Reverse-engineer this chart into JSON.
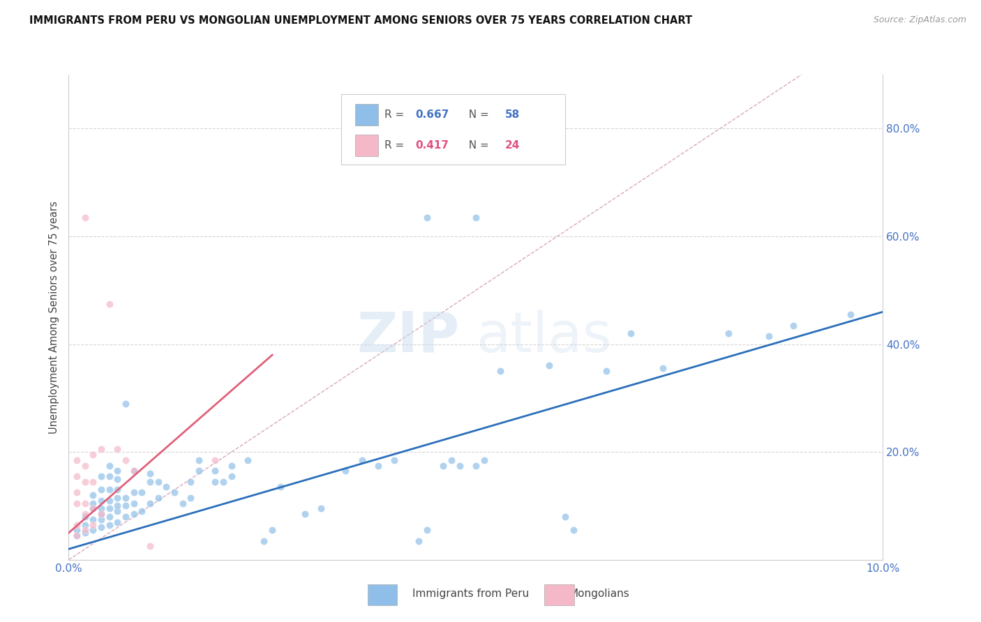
{
  "title": "IMMIGRANTS FROM PERU VS MONGOLIAN UNEMPLOYMENT AMONG SENIORS OVER 75 YEARS CORRELATION CHART",
  "source": "Source: ZipAtlas.com",
  "ylabel": "Unemployment Among Seniors over 75 years",
  "xlim": [
    0.0,
    0.1
  ],
  "ylim": [
    0.0,
    0.9
  ],
  "xticks": [
    0.0,
    0.02,
    0.04,
    0.06,
    0.08,
    0.1
  ],
  "yticks": [
    0.0,
    0.2,
    0.4,
    0.6,
    0.8
  ],
  "xticklabels": [
    "0.0%",
    "",
    "",
    "",
    "",
    "10.0%"
  ],
  "yticklabels": [
    "",
    "20.0%",
    "40.0%",
    "60.0%",
    "80.0%"
  ],
  "legend_label1": "Immigrants from Peru",
  "legend_label2": "Mongolians",
  "blue_color": "#8fbfe8",
  "pink_color": "#f4b8c8",
  "blue_line_color": "#2a6fba",
  "pink_line_color": "#e0607a",
  "diagonal_color": "#d8a8b8",
  "background_color": "#ffffff",
  "watermark_zip": "ZIP",
  "watermark_atlas": "atlas",
  "peru_points": [
    [
      0.001,
      0.045
    ],
    [
      0.001,
      0.055
    ],
    [
      0.002,
      0.05
    ],
    [
      0.002,
      0.065
    ],
    [
      0.002,
      0.08
    ],
    [
      0.003,
      0.055
    ],
    [
      0.003,
      0.075
    ],
    [
      0.003,
      0.095
    ],
    [
      0.003,
      0.105
    ],
    [
      0.003,
      0.12
    ],
    [
      0.004,
      0.06
    ],
    [
      0.004,
      0.075
    ],
    [
      0.004,
      0.085
    ],
    [
      0.004,
      0.095
    ],
    [
      0.004,
      0.11
    ],
    [
      0.004,
      0.13
    ],
    [
      0.004,
      0.155
    ],
    [
      0.005,
      0.065
    ],
    [
      0.005,
      0.08
    ],
    [
      0.005,
      0.095
    ],
    [
      0.005,
      0.11
    ],
    [
      0.005,
      0.13
    ],
    [
      0.005,
      0.155
    ],
    [
      0.005,
      0.175
    ],
    [
      0.006,
      0.07
    ],
    [
      0.006,
      0.09
    ],
    [
      0.006,
      0.1
    ],
    [
      0.006,
      0.115
    ],
    [
      0.006,
      0.13
    ],
    [
      0.006,
      0.15
    ],
    [
      0.006,
      0.165
    ],
    [
      0.007,
      0.08
    ],
    [
      0.007,
      0.1
    ],
    [
      0.007,
      0.115
    ],
    [
      0.007,
      0.29
    ],
    [
      0.008,
      0.085
    ],
    [
      0.008,
      0.105
    ],
    [
      0.008,
      0.125
    ],
    [
      0.008,
      0.165
    ],
    [
      0.009,
      0.09
    ],
    [
      0.009,
      0.125
    ],
    [
      0.01,
      0.105
    ],
    [
      0.01,
      0.145
    ],
    [
      0.01,
      0.16
    ],
    [
      0.011,
      0.115
    ],
    [
      0.011,
      0.145
    ],
    [
      0.012,
      0.135
    ],
    [
      0.013,
      0.125
    ],
    [
      0.014,
      0.105
    ],
    [
      0.015,
      0.115
    ],
    [
      0.015,
      0.145
    ],
    [
      0.016,
      0.165
    ],
    [
      0.016,
      0.185
    ],
    [
      0.018,
      0.145
    ],
    [
      0.018,
      0.165
    ],
    [
      0.019,
      0.145
    ],
    [
      0.02,
      0.155
    ],
    [
      0.02,
      0.175
    ],
    [
      0.022,
      0.185
    ],
    [
      0.024,
      0.035
    ],
    [
      0.025,
      0.055
    ],
    [
      0.026,
      0.135
    ],
    [
      0.029,
      0.085
    ],
    [
      0.031,
      0.095
    ],
    [
      0.034,
      0.165
    ],
    [
      0.036,
      0.185
    ],
    [
      0.038,
      0.175
    ],
    [
      0.04,
      0.185
    ],
    [
      0.043,
      0.035
    ],
    [
      0.044,
      0.055
    ],
    [
      0.046,
      0.175
    ],
    [
      0.047,
      0.185
    ],
    [
      0.048,
      0.175
    ],
    [
      0.05,
      0.175
    ],
    [
      0.051,
      0.185
    ],
    [
      0.044,
      0.635
    ],
    [
      0.05,
      0.635
    ],
    [
      0.053,
      0.35
    ],
    [
      0.059,
      0.36
    ],
    [
      0.061,
      0.08
    ],
    [
      0.062,
      0.055
    ],
    [
      0.066,
      0.35
    ],
    [
      0.069,
      0.42
    ],
    [
      0.073,
      0.355
    ],
    [
      0.081,
      0.42
    ],
    [
      0.086,
      0.415
    ],
    [
      0.089,
      0.435
    ],
    [
      0.096,
      0.455
    ]
  ],
  "mongolian_points": [
    [
      0.001,
      0.045
    ],
    [
      0.001,
      0.065
    ],
    [
      0.001,
      0.105
    ],
    [
      0.001,
      0.125
    ],
    [
      0.001,
      0.155
    ],
    [
      0.001,
      0.185
    ],
    [
      0.002,
      0.055
    ],
    [
      0.002,
      0.085
    ],
    [
      0.002,
      0.105
    ],
    [
      0.002,
      0.145
    ],
    [
      0.002,
      0.175
    ],
    [
      0.002,
      0.635
    ],
    [
      0.003,
      0.065
    ],
    [
      0.003,
      0.095
    ],
    [
      0.003,
      0.145
    ],
    [
      0.003,
      0.195
    ],
    [
      0.004,
      0.085
    ],
    [
      0.004,
      0.205
    ],
    [
      0.005,
      0.475
    ],
    [
      0.006,
      0.205
    ],
    [
      0.007,
      0.185
    ],
    [
      0.008,
      0.165
    ],
    [
      0.01,
      0.025
    ],
    [
      0.018,
      0.185
    ]
  ],
  "blue_line_x": [
    0.0,
    0.1
  ],
  "blue_line_y": [
    0.02,
    0.46
  ],
  "pink_line_x": [
    0.0,
    0.025
  ],
  "pink_line_y": [
    0.05,
    0.38
  ],
  "diag_line_x": [
    0.0,
    0.09
  ],
  "diag_line_y": [
    0.0,
    0.9
  ]
}
